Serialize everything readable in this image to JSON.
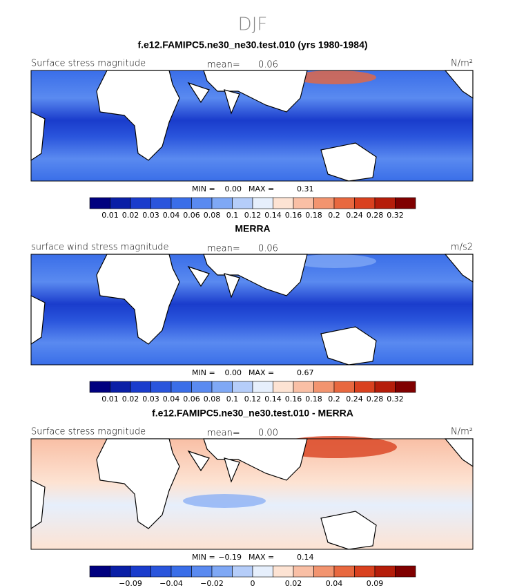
{
  "title": "DJF",
  "panels": [
    {
      "title": "f.e12.FAMIPC5.ne30_ne30.test.010 (yrs 1980-1984)",
      "left_label": "Surface stress magnitude",
      "mean_label": "mean=",
      "mean": "0.06",
      "units": "N/m²",
      "min_label": "MIN =",
      "min": "0.00",
      "max_label": "MAX =",
      "max": "0.31",
      "colorbar": [
        "0.01",
        "0.02",
        "0.03",
        "0.04",
        "0.06",
        "0.08",
        "0.1",
        "0.12",
        "0.14",
        "0.16",
        "0.18",
        "0.2",
        "0.24",
        "0.28",
        "0.32"
      ]
    },
    {
      "title": "MERRA",
      "left_label": "surface wind stress magnitude",
      "mean_label": "mean=",
      "mean": "0.06",
      "units": "m/s2",
      "min_label": "MIN =",
      "min": "0.00",
      "max_label": "MAX =",
      "max": "0.67",
      "colorbar": [
        "0.01",
        "0.02",
        "0.03",
        "0.04",
        "0.06",
        "0.08",
        "0.1",
        "0.12",
        "0.14",
        "0.16",
        "0.18",
        "0.2",
        "0.24",
        "0.28",
        "0.32"
      ]
    },
    {
      "title": "f.e12.FAMIPC5.ne30_ne30.test.010 - MERRA",
      "left_label": "Surface stress magnitude",
      "mean_label": "mean=",
      "mean": "0.00",
      "units": "N/m²",
      "min_label": "MIN =",
      "min": "−0.19",
      "max_label": "MAX =",
      "max": "0.14",
      "colorbar": [
        "−0.09",
        "−0.04",
        "−0.02",
        "0",
        "0.02",
        "0.04",
        "0.09"
      ]
    }
  ]
}
